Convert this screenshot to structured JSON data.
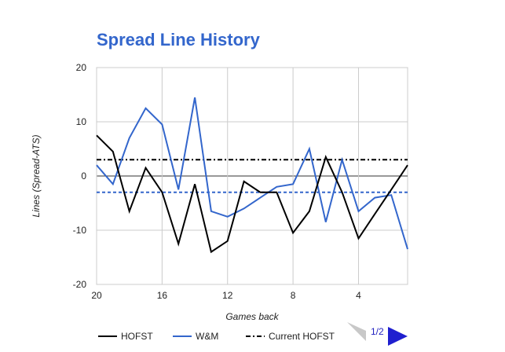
{
  "chart_data": {
    "type": "line",
    "title": "Spread Line History",
    "xlabel": "Games back",
    "ylabel": "Lines (Spread-ATS)",
    "xlim": [
      20,
      1
    ],
    "ylim": [
      -20,
      20
    ],
    "x_ticks": [
      20,
      16,
      12,
      8,
      4
    ],
    "y_ticks": [
      20,
      10,
      0,
      -10,
      -20
    ],
    "grid": true,
    "legend_position": "bottom",
    "x": [
      20,
      19,
      18,
      17,
      16,
      15,
      14,
      13,
      12,
      11,
      10,
      9,
      8,
      7,
      6,
      5,
      4,
      3,
      2,
      1
    ],
    "series": [
      {
        "name": "HOFST",
        "color": "#000000",
        "style": "solid",
        "values": [
          7.5,
          4.5,
          -6.5,
          1.5,
          -3,
          -12.5,
          -1.5,
          -14,
          -12,
          -1,
          -3,
          -3,
          -10.5,
          -6.5,
          3.5,
          -3,
          -11.5,
          -7,
          -2.5,
          2
        ]
      },
      {
        "name": "W&M",
        "color": "#3366cc",
        "style": "solid",
        "values": [
          2,
          -1.5,
          7,
          12.5,
          9.5,
          -2.5,
          14.5,
          -6.5,
          -7.5,
          -6,
          -4,
          -2,
          -1.5,
          5,
          -8.5,
          3,
          -6.5,
          -4,
          -3.5,
          -13.5
        ]
      },
      {
        "name": "Current HOFST",
        "color": "#000000",
        "style": "dash-dot",
        "values": [
          3,
          3,
          3,
          3,
          3,
          3,
          3,
          3,
          3,
          3,
          3,
          3,
          3,
          3,
          3,
          3,
          3,
          3,
          3,
          3
        ]
      },
      {
        "color": "#3366cc",
        "style": "dashed",
        "values": [
          -3,
          -3,
          -3,
          -3,
          -3,
          -3,
          -3,
          -3,
          -3,
          -3,
          -3,
          -3,
          -3,
          -3,
          -3,
          -3,
          -3,
          -3,
          -3,
          -3
        ]
      }
    ]
  },
  "pager": {
    "label": "1/2"
  }
}
